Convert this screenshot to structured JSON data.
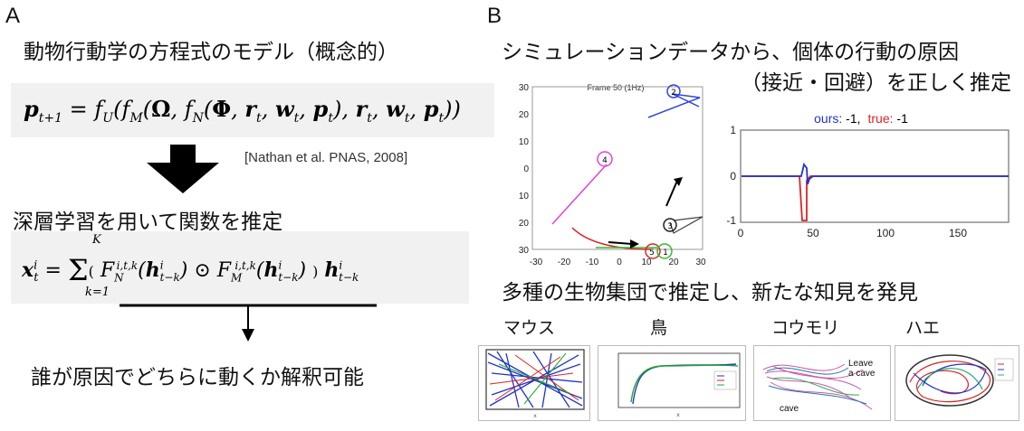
{
  "panel_a": {
    "label": "A",
    "title": "動物行動学の方程式のモデル（概念的）",
    "formula1": "p_{t+1} = f_U(f_M(Ω, f_N(Φ, r_t, w_t, p_t), r_t, w_t, p_t))",
    "citation": "[Nathan et al. PNAS, 2008]",
    "step2": "深層学習を用いて関数を推定",
    "formula2": "x_t^i = Σ_{k=1}^{K} ( F_N^{i,t,k}(h_{t-k}^i) ⊙ F_M^{i,t,k}(h_{t-k}^i) ) h_{t-k}^i",
    "conclusion": "誰が原因でどちらに動くか解釈可能"
  },
  "panel_b": {
    "label": "B",
    "title_line1": "シミュレーションデータから、個体の行動の原因",
    "title_line2": "（接近・回避）を正しく推定",
    "sim_plot": {
      "frame_title": "Frame 50 (1Hz)",
      "x_ticks": [
        "-30",
        "-20",
        "-10",
        "0",
        "10",
        "20",
        "30"
      ],
      "y_ticks": [
        "30",
        "20",
        "10",
        "0",
        "10",
        "20",
        "30"
      ],
      "agents": [
        "1",
        "2",
        "3",
        "4",
        "5"
      ]
    },
    "estimate_plot": {
      "legend_ours_label": "ours:",
      "legend_ours_value": " -1,",
      "legend_true_label": "true:",
      "legend_true_value": " -1",
      "y_ticks": [
        "1",
        "0",
        "-1"
      ],
      "x_ticks": [
        "0",
        "50",
        "100",
        "150"
      ],
      "ours_color": "#2233cc",
      "true_color": "#dd2222"
    },
    "subtitle": "多種の生物集団で推定し、新たな知見を発見",
    "species": [
      {
        "label": "マウス"
      },
      {
        "label": "鳥"
      },
      {
        "label": "コウモリ"
      },
      {
        "label": "ハエ"
      }
    ],
    "bat_annotations": {
      "leave": "Leave\na cave",
      "cave": "cave"
    }
  }
}
